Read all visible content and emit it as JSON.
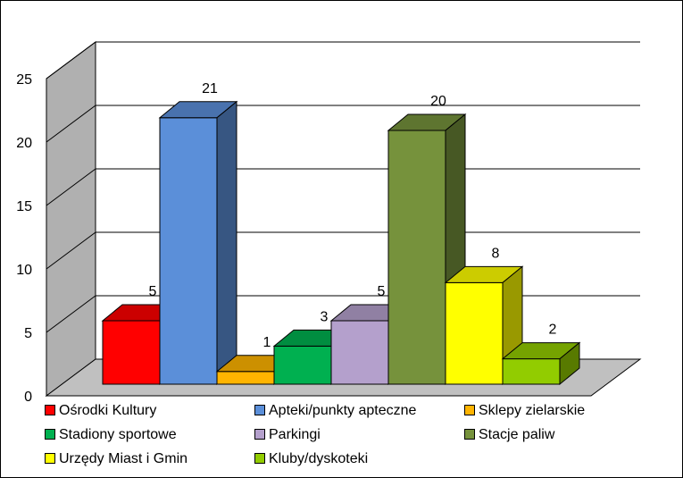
{
  "chart_data": {
    "type": "bar",
    "three_d": true,
    "title": "",
    "xlabel": "",
    "ylabel": "",
    "ylim": [
      0,
      25
    ],
    "yticks": [
      0,
      5,
      10,
      15,
      20,
      25
    ],
    "grid": true,
    "legend_position": "bottom",
    "series": [
      {
        "name": "Ośrodki Kultury",
        "value": 5,
        "color": "#FF0000"
      },
      {
        "name": "Apteki/punkty apteczne",
        "value": 21,
        "color": "#5B8FD9"
      },
      {
        "name": "Sklepy zielarskie",
        "value": 1,
        "color": "#FFB400"
      },
      {
        "name": "Stadiony sportowe",
        "value": 3,
        "color": "#00B050"
      },
      {
        "name": "Parkingi",
        "value": 5,
        "color": "#B4A0CC"
      },
      {
        "name": "Stacje paliw",
        "value": 20,
        "color": "#76923C"
      },
      {
        "name": "Urzędy Miast i Gmin",
        "value": 8,
        "color": "#FFFF00"
      },
      {
        "name": "Kluby/dyskoteki",
        "value": 2,
        "color": "#92CC00"
      }
    ]
  }
}
